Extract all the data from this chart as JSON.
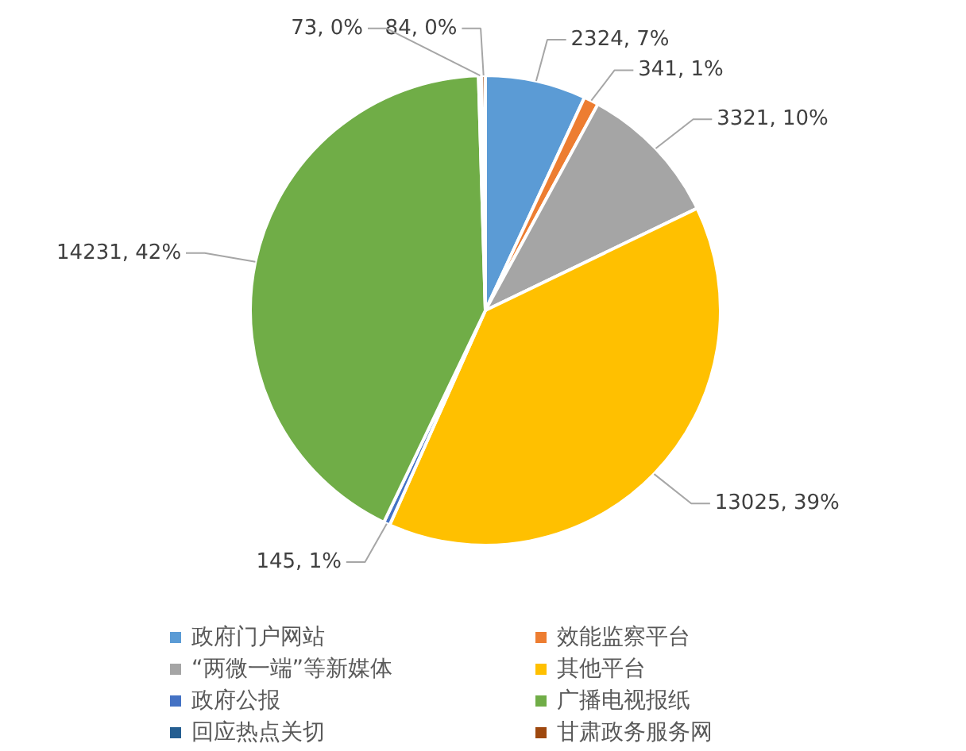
{
  "chart_data": {
    "type": "pie",
    "categories": [
      "政府门户网站",
      "效能监察平台",
      "“两微一端”等新媒体",
      "其他平台",
      "政府公报",
      "广播电视报纸",
      "回应热点关切",
      "甘肃政务服务网"
    ],
    "values": [
      2324,
      341,
      3321,
      13025,
      145,
      14231,
      73,
      84
    ],
    "value_labels": [
      "2324, 7%",
      "341, 1%",
      "3321, 10%",
      "13025, 39%",
      "145, 1%",
      "14231, 42%",
      "73, 0%",
      "84, 0%"
    ],
    "colors": [
      "#5b9bd5",
      "#ed7d31",
      "#a5a5a5",
      "#ffc000",
      "#4472c4",
      "#70ad47",
      "#255e91",
      "#9e480e"
    ],
    "legend": "bottom"
  }
}
